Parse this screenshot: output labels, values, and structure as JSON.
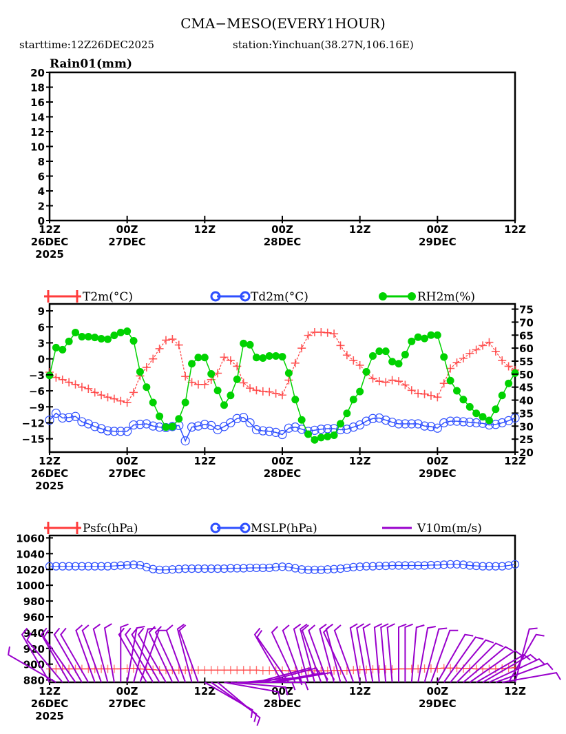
{
  "header": {
    "title": "CMA−MESO(EVERY1HOUR)",
    "subtitle_start": "starttime:12Z26DEC2025",
    "subtitle_station": "station:Yinchuan(38.27N,106.16E)"
  },
  "x_axis": {
    "ticks": [
      {
        "hour": 0,
        "lines": [
          "12Z",
          "26DEC",
          "2025"
        ]
      },
      {
        "hour": 12,
        "lines": [
          "00Z",
          "27DEC"
        ]
      },
      {
        "hour": 24,
        "lines": [
          "12Z"
        ]
      },
      {
        "hour": 36,
        "lines": [
          "00Z",
          "28DEC"
        ]
      },
      {
        "hour": 48,
        "lines": [
          "12Z"
        ]
      },
      {
        "hour": 60,
        "lines": [
          "00Z",
          "29DEC"
        ]
      },
      {
        "hour": 72,
        "lines": [
          "12Z"
        ]
      }
    ]
  },
  "colors": {
    "t2m": "#ff3b3b",
    "td2m": "#2e4fff",
    "rh2m": "#00d200",
    "psfc": "#ff3b3b",
    "mslp": "#2e4fff",
    "v10m": "#9900cc"
  },
  "chart_data": [
    {
      "type": "line",
      "title": "Rain01(mm)",
      "xlabel": "",
      "ylabel": "Rain01(mm)",
      "ylim": [
        0,
        20
      ],
      "yticks": [
        0,
        2,
        4,
        6,
        8,
        10,
        12,
        14,
        16,
        18,
        20
      ],
      "grid": false,
      "series": []
    },
    {
      "type": "line",
      "title": "",
      "legend": [
        "T2m(°C)",
        "Td2m(°C)",
        "RH2m(%)"
      ],
      "legend_position": "top",
      "ylim_left": [
        -17.5,
        10.3
      ],
      "yticks_left": [
        -15,
        -12,
        -9,
        -6,
        -3,
        0,
        3,
        6,
        9
      ],
      "ylim_right": [
        20,
        77
      ],
      "yticks_right": [
        20,
        25,
        30,
        35,
        40,
        45,
        50,
        55,
        60,
        65,
        70,
        75
      ],
      "x_hours": "0..72 hourly",
      "series": [
        {
          "name": "T2m(°C)",
          "axis": "left",
          "marker": "plus",
          "values": [
            -2.5,
            -3.5,
            -3.9,
            -4.4,
            -4.8,
            -5.3,
            -5.6,
            -6.3,
            -6.8,
            -7.2,
            -7.5,
            -7.9,
            -8.2,
            -6.3,
            -3.2,
            -1.6,
            0.0,
            1.9,
            3.5,
            3.7,
            2.6,
            -3.3,
            -4.4,
            -4.8,
            -4.8,
            -3.9,
            -2.7,
            0.3,
            -0.3,
            -1.4,
            -4.5,
            -5.5,
            -5.9,
            -6.1,
            -6.2,
            -6.5,
            -6.8,
            -4.0,
            -0.8,
            2.0,
            4.4,
            5.0,
            5.0,
            4.9,
            4.7,
            2.5,
            0.7,
            -0.3,
            -1.2,
            -2.5,
            -3.7,
            -4.2,
            -4.4,
            -4.0,
            -4.2,
            -4.9,
            -5.9,
            -6.5,
            -6.6,
            -6.9,
            -7.2,
            -4.6,
            -1.8,
            -0.7,
            0.1,
            1.0,
            1.7,
            2.5,
            3.1,
            1.4,
            -0.3,
            -1.4,
            -2.1
          ]
        },
        {
          "name": "Td2m(°C)",
          "axis": "left",
          "marker": "circle",
          "values": [
            -11.5,
            -10.2,
            -11.1,
            -11.0,
            -10.8,
            -11.8,
            -12.2,
            -12.7,
            -13.1,
            -13.5,
            -13.6,
            -13.6,
            -13.6,
            -12.4,
            -12.3,
            -12.2,
            -12.6,
            -12.8,
            -12.9,
            -12.7,
            -12.5,
            -15.4,
            -12.8,
            -12.6,
            -12.3,
            -12.5,
            -13.3,
            -12.7,
            -12.0,
            -11.2,
            -11.0,
            -12.0,
            -13.3,
            -13.5,
            -13.6,
            -13.8,
            -14.2,
            -13.0,
            -12.8,
            -13.2,
            -13.6,
            -13.4,
            -13.2,
            -13.1,
            -13.1,
            -13.3,
            -13.2,
            -12.8,
            -12.4,
            -11.7,
            -11.2,
            -11.1,
            -11.5,
            -11.9,
            -12.2,
            -12.2,
            -12.2,
            -12.2,
            -12.6,
            -12.7,
            -13.0,
            -12.0,
            -11.7,
            -11.7,
            -11.8,
            -11.9,
            -12.0,
            -12.1,
            -12.4,
            -12.3,
            -12.0,
            -11.6,
            -11.1
          ]
        },
        {
          "name": "RH2m(%)",
          "axis": "right",
          "marker": "dot",
          "values": [
            49.5,
            60.2,
            59.4,
            62.6,
            66,
            64.4,
            64.4,
            64.1,
            63.6,
            63.4,
            64.9,
            66,
            66.5,
            62.8,
            50.9,
            45,
            39.1,
            33.8,
            29.6,
            29.8,
            32.8,
            39.1,
            54,
            56.4,
            56.4,
            50.1,
            43.7,
            38.1,
            41.8,
            48,
            61.8,
            61.3,
            56.4,
            56.2,
            57,
            57,
            56.7,
            50.4,
            40.2,
            32.4,
            26.9,
            24.7,
            25.6,
            26,
            26.5,
            30.9,
            34.9,
            40.2,
            43.3,
            50.9,
            57,
            58.8,
            58.8,
            54.8,
            54.0,
            57.5,
            62.6,
            64.2,
            63.7,
            65,
            65,
            56.6,
            47.5,
            43.6,
            40.2,
            37.4,
            34.9,
            33.6,
            32.2,
            36.5,
            41.8,
            46.4,
            50.4
          ]
        }
      ]
    },
    {
      "type": "line",
      "title": "",
      "legend": [
        "Psfc(hPa)",
        "MSLP(hPa)",
        "V10m(m/s)"
      ],
      "legend_position": "top",
      "ylim": [
        877,
        1063
      ],
      "yticks": [
        880,
        900,
        920,
        940,
        960,
        980,
        1000,
        1020,
        1040,
        1060
      ],
      "series": [
        {
          "name": "Psfc(hPa)",
          "marker": "plus",
          "values": [
            894,
            894,
            894,
            894,
            894,
            894,
            894,
            894,
            894,
            894,
            894,
            894,
            894.5,
            894.5,
            894,
            893.5,
            893,
            892.5,
            892.5,
            892.5,
            892.5,
            892.5,
            892.5,
            892.5,
            892.5,
            892.5,
            892.5,
            892.5,
            892.5,
            892.5,
            892.5,
            892.5,
            892.5,
            892,
            892,
            892,
            892,
            891.5,
            891.5,
            891.5,
            891.5,
            891.5,
            891.5,
            891.5,
            892,
            892,
            892,
            892.5,
            893,
            893,
            893.5,
            893.5,
            893.5,
            893.5,
            894,
            894,
            894,
            894,
            894.5,
            894.5,
            894.5,
            895,
            895,
            895,
            894.5,
            894.5,
            894,
            894,
            894,
            894,
            894.5,
            895,
            895.5
          ]
        },
        {
          "name": "MSLP(hPa)",
          "marker": "circle",
          "values": [
            1024,
            1024,
            1024,
            1024,
            1024,
            1024,
            1024,
            1024,
            1024,
            1024,
            1024.5,
            1025,
            1025.5,
            1026,
            1025.5,
            1023,
            1020.5,
            1019.5,
            1019.5,
            1020,
            1020.5,
            1021,
            1021,
            1021,
            1021,
            1021,
            1021,
            1021,
            1021.5,
            1021.5,
            1021.5,
            1022,
            1022,
            1022,
            1022,
            1023,
            1023.5,
            1023,
            1021.5,
            1020,
            1019.5,
            1019.5,
            1019.5,
            1020,
            1020.5,
            1021,
            1022,
            1023,
            1023.5,
            1024,
            1024,
            1024.5,
            1024.5,
            1025,
            1025,
            1025,
            1025,
            1025,
            1025,
            1025.5,
            1025.5,
            1026,
            1026.5,
            1026.5,
            1026,
            1025,
            1024.5,
            1024,
            1024,
            1024,
            1024,
            1025,
            1026.5
          ]
        },
        {
          "name": "V10m(m/s)",
          "marker": "barb",
          "note": "wind barbs drawn along bottom axis",
          "directions_deg": [
            330,
            300,
            320,
            330,
            325,
            330,
            330,
            340,
            340,
            345,
            350,
            0,
            10,
            15,
            20,
            330,
            330,
            330,
            330,
            335,
            335,
            340,
            345,
            340,
            120,
            125,
            130,
            100,
            95,
            90,
            85,
            90,
            75,
            75,
            80,
            80,
            330,
            325,
            335,
            340,
            345,
            345,
            340,
            340,
            345,
            345,
            335,
            340,
            350,
            350,
            350,
            355,
            355,
            355,
            0,
            0,
            5,
            10,
            15,
            20,
            30,
            35,
            40,
            45,
            50,
            55,
            60,
            60,
            65,
            70,
            80,
            30,
            15
          ],
          "speeds_ms": [
            4,
            5,
            5,
            6,
            6,
            6,
            6,
            6,
            6,
            6,
            6,
            6,
            6,
            6,
            6,
            6,
            6,
            6,
            6,
            6,
            6,
            6,
            6,
            6,
            6,
            6,
            6,
            6,
            6,
            6,
            6,
            6,
            6,
            6,
            6,
            6,
            6,
            6,
            6,
            6,
            6,
            6,
            6,
            6,
            6,
            6,
            6,
            6,
            6,
            6,
            6,
            6,
            6,
            6,
            6,
            6,
            6,
            6,
            6,
            6,
            6,
            6,
            6,
            6,
            6,
            6,
            6,
            6,
            6,
            6,
            6,
            6,
            6
          ]
        }
      ]
    }
  ]
}
